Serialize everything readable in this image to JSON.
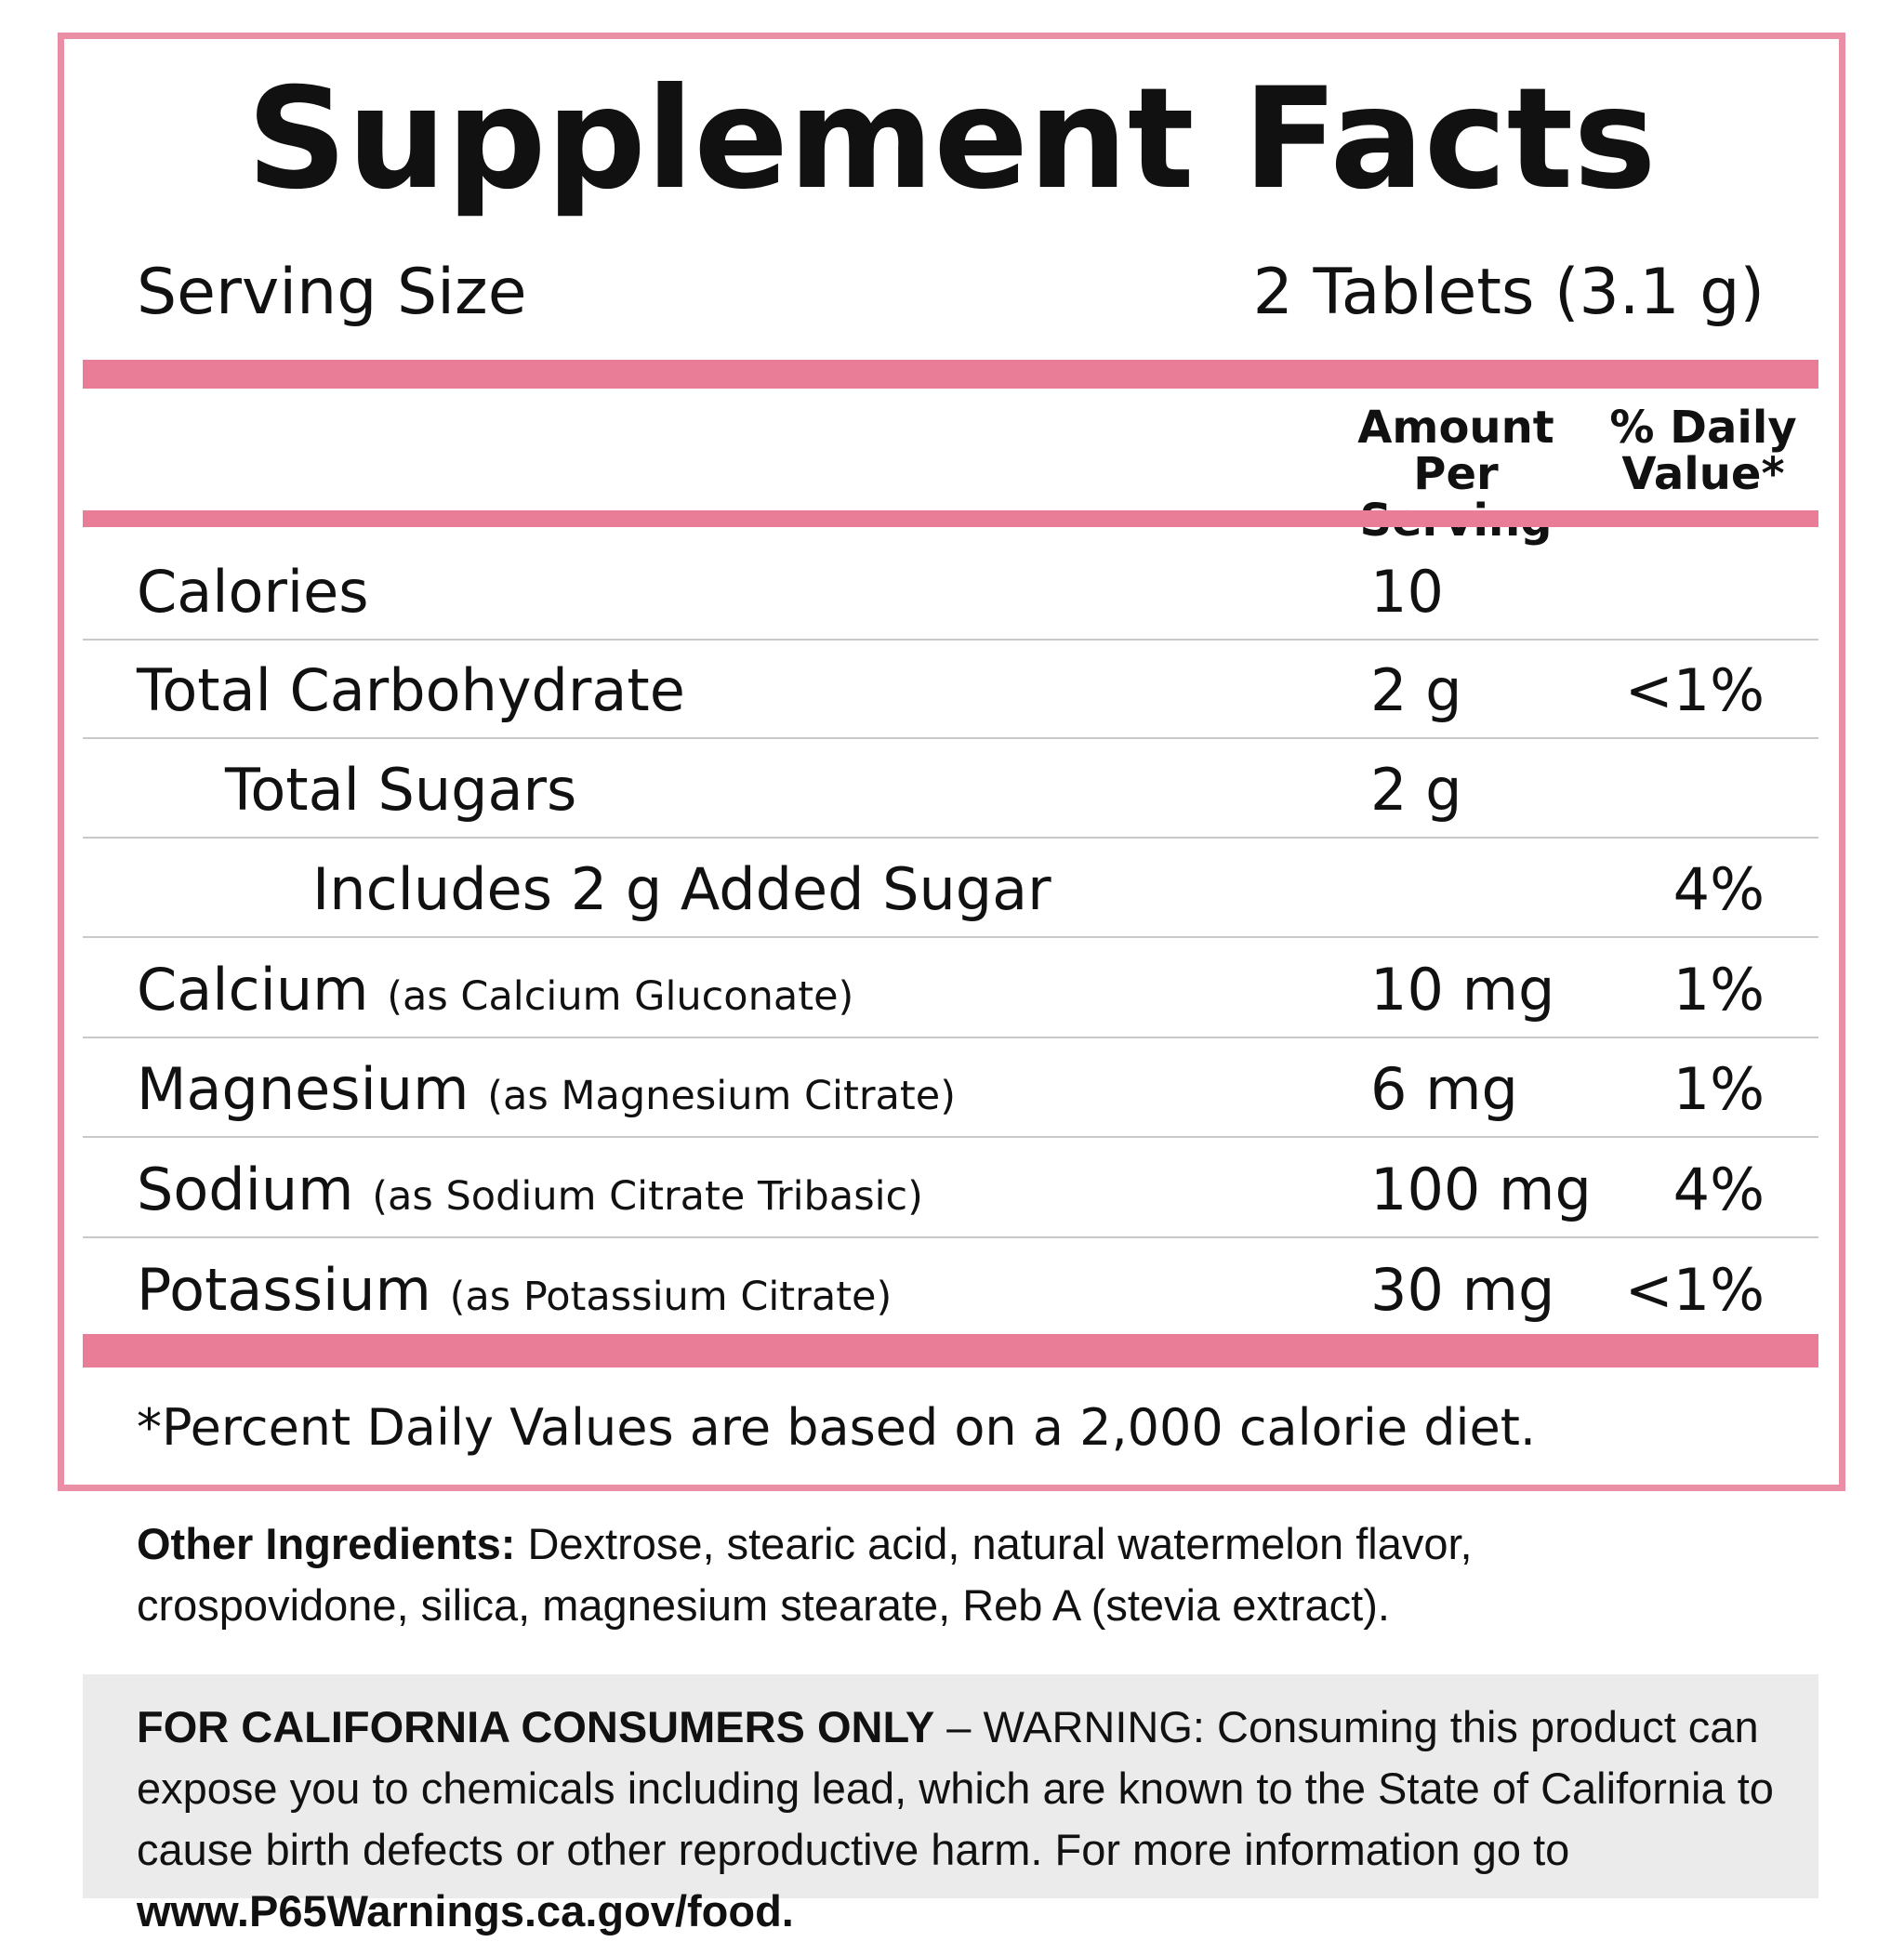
{
  "title": "Supplement Facts",
  "serving": {
    "label": "Serving Size",
    "value": "2 Tablets (3.1 g)"
  },
  "header": {
    "amount": [
      "Amount",
      "Per Serving"
    ],
    "dv": [
      "% Daily",
      "Value*"
    ]
  },
  "rows": [
    {
      "name": "Calories",
      "amount": "10"
    },
    {
      "name": "Total Carbohydrate",
      "amount": "2 g",
      "dv": "<1%"
    },
    {
      "name": "Total Sugars",
      "amount": "2 g"
    },
    {
      "name": "Includes 2 g Added Sugar",
      "dv": "4%"
    },
    {
      "name": "Calcium",
      "note": "(as Calcium Gluconate)",
      "amount": "10 mg",
      "dv": "1%"
    },
    {
      "name": "Magnesium",
      "note": "(as Magnesium Citrate)",
      "amount": "6 mg",
      "dv": "1%"
    },
    {
      "name": "Sodium",
      "note": "(as Sodium Citrate Tribasic)",
      "amount": "100 mg",
      "dv": "4%"
    },
    {
      "name": "Potassium",
      "note": "(as Potassium Citrate)",
      "amount": "30 mg",
      "dv": "<1%"
    }
  ],
  "footnote": "*Percent Daily Values are based on a 2,000 calorie diet.",
  "other_ingredients": {
    "label": "Other Ingredients:",
    "text": "Dextrose, stearic acid, natural watermelon flavor, crospovidone, silica, magnesium stearate, Reb A (stevia extract)."
  },
  "warning": {
    "label": "FOR CALIFORNIA CONSUMERS ONLY",
    "text": " – WARNING: Consuming this product can expose you to chemicals including lead, which are known to the State of California to cause birth defects or other reproductive harm. For more information go to ",
    "link": "www.P65Warnings.ca.gov/food."
  }
}
